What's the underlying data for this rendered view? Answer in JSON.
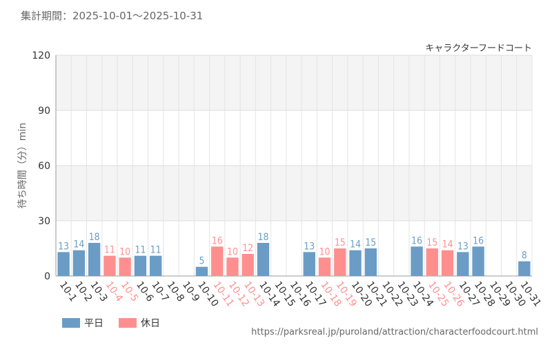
{
  "header": {
    "period_text": "集計期間：2025-10-01～2025-10-31"
  },
  "footer": {
    "url_text": "https://parksreal.jp/puroland/attraction/characterfoodcourt.html"
  },
  "legend": {
    "weekday_label": "平日",
    "holiday_label": "休日",
    "weekday_color": "#6a9cc6",
    "holiday_color": "#ff8f8f"
  },
  "chart_data": {
    "type": "bar",
    "title": "キャラクターフードコート",
    "ylabel": "待ち時間（分）min",
    "xlabel": "",
    "ylim": [
      0,
      120
    ],
    "yticks": [
      0,
      30,
      60,
      90,
      120
    ],
    "categories": [
      "10-1",
      "10-2",
      "10-3",
      "10-4",
      "10-5",
      "10-6",
      "10-7",
      "10-8",
      "10-9",
      "10-10",
      "10-11",
      "10-12",
      "10-13",
      "10-14",
      "10-15",
      "10-16",
      "10-17",
      "10-18",
      "10-19",
      "10-20",
      "10-21",
      "10-22",
      "10-23",
      "10-24",
      "10-25",
      "10-26",
      "10-27",
      "10-28",
      "10-29",
      "10-30",
      "10-31"
    ],
    "values": [
      13,
      14,
      18,
      11,
      10,
      11,
      11,
      null,
      null,
      5,
      16,
      10,
      12,
      18,
      null,
      null,
      13,
      10,
      15,
      14,
      15,
      null,
      null,
      16,
      15,
      14,
      13,
      16,
      null,
      null,
      8
    ],
    "day_type": [
      "weekday",
      "weekday",
      "weekday",
      "holiday",
      "holiday",
      "weekday",
      "weekday",
      "weekday",
      "weekday",
      "weekday",
      "holiday",
      "holiday",
      "holiday",
      "weekday",
      "weekday",
      "weekday",
      "weekday",
      "holiday",
      "holiday",
      "weekday",
      "weekday",
      "weekday",
      "weekday",
      "weekday",
      "holiday",
      "holiday",
      "weekday",
      "weekday",
      "weekday",
      "weekday",
      "weekday"
    ],
    "series": [
      {
        "name": "平日",
        "color": "#6a9cc6"
      },
      {
        "name": "休日",
        "color": "#ff8f8f"
      }
    ]
  }
}
